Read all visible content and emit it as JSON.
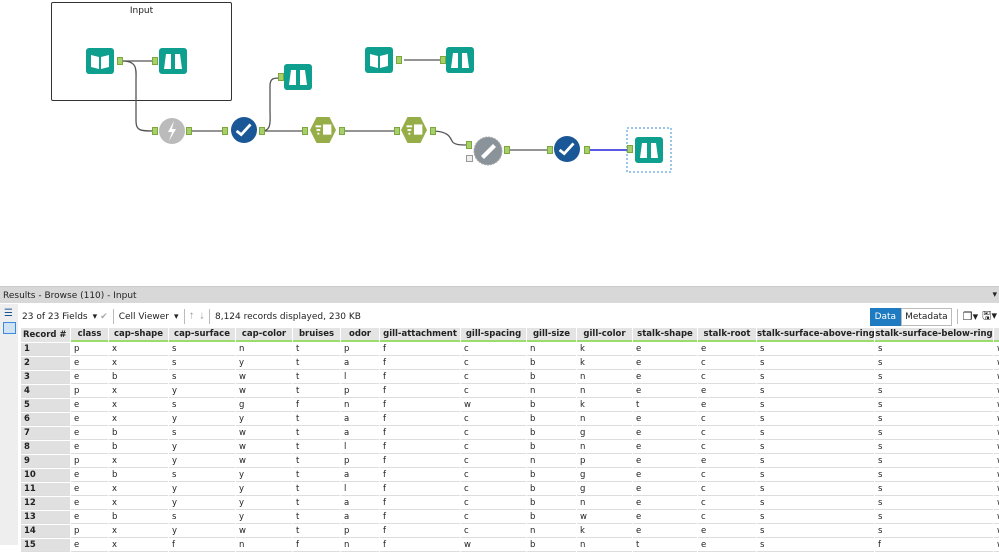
{
  "canvas": {
    "container_title": "Input",
    "selected_color": "#3a8be0",
    "tool_color": "#0e9f8e",
    "connection_highlight": "#2222dd"
  },
  "results": {
    "title": "Results - Browse (110) - Input",
    "fields_label": "23 of 23 Fields",
    "viewer_label": "Cell Viewer",
    "records_info": "8,124 records displayed, 230 KB",
    "data_tab": "Data",
    "metadata_tab": "Metadata",
    "columns": [
      "Record #",
      "class",
      "cap-shape",
      "cap-surface",
      "cap-color",
      "bruises",
      "odor",
      "gill-attachment",
      "gill-spacing",
      "gill-size",
      "gill-color",
      "stalk-shape",
      "stalk-root",
      "stalk-surface-above-ring",
      "stalk-surface-below-ring",
      ""
    ],
    "rows": [
      [
        "1",
        "p",
        "x",
        "s",
        "n",
        "t",
        "p",
        "f",
        "c",
        "n",
        "k",
        "e",
        "e",
        "s",
        "s",
        "w"
      ],
      [
        "2",
        "e",
        "x",
        "s",
        "y",
        "t",
        "a",
        "f",
        "c",
        "b",
        "k",
        "e",
        "c",
        "s",
        "s",
        "w"
      ],
      [
        "3",
        "e",
        "b",
        "s",
        "w",
        "t",
        "l",
        "f",
        "c",
        "b",
        "n",
        "e",
        "c",
        "s",
        "s",
        "w"
      ],
      [
        "4",
        "p",
        "x",
        "y",
        "w",
        "t",
        "p",
        "f",
        "c",
        "n",
        "n",
        "e",
        "e",
        "s",
        "s",
        "w"
      ],
      [
        "5",
        "e",
        "x",
        "s",
        "g",
        "f",
        "n",
        "f",
        "w",
        "b",
        "k",
        "t",
        "e",
        "s",
        "s",
        "w"
      ],
      [
        "6",
        "e",
        "x",
        "y",
        "y",
        "t",
        "a",
        "f",
        "c",
        "b",
        "n",
        "e",
        "c",
        "s",
        "s",
        "w"
      ],
      [
        "7",
        "e",
        "b",
        "s",
        "w",
        "t",
        "a",
        "f",
        "c",
        "b",
        "g",
        "e",
        "c",
        "s",
        "s",
        "w"
      ],
      [
        "8",
        "e",
        "b",
        "y",
        "w",
        "t",
        "l",
        "f",
        "c",
        "b",
        "n",
        "e",
        "c",
        "s",
        "s",
        "w"
      ],
      [
        "9",
        "p",
        "x",
        "y",
        "w",
        "t",
        "p",
        "f",
        "c",
        "n",
        "p",
        "e",
        "e",
        "s",
        "s",
        "w"
      ],
      [
        "10",
        "e",
        "b",
        "s",
        "y",
        "t",
        "a",
        "f",
        "c",
        "b",
        "g",
        "e",
        "c",
        "s",
        "s",
        "w"
      ],
      [
        "11",
        "e",
        "x",
        "y",
        "y",
        "t",
        "l",
        "f",
        "c",
        "b",
        "g",
        "e",
        "c",
        "s",
        "s",
        "w"
      ],
      [
        "12",
        "e",
        "x",
        "y",
        "y",
        "t",
        "a",
        "f",
        "c",
        "b",
        "n",
        "e",
        "c",
        "s",
        "s",
        "w"
      ],
      [
        "13",
        "e",
        "b",
        "s",
        "y",
        "t",
        "a",
        "f",
        "c",
        "b",
        "w",
        "e",
        "c",
        "s",
        "s",
        "w"
      ],
      [
        "14",
        "p",
        "x",
        "y",
        "w",
        "t",
        "p",
        "f",
        "c",
        "n",
        "k",
        "e",
        "e",
        "s",
        "s",
        "w"
      ],
      [
        "15",
        "e",
        "x",
        "f",
        "n",
        "f",
        "n",
        "f",
        "w",
        "b",
        "n",
        "t",
        "e",
        "s",
        "f",
        "w"
      ]
    ]
  }
}
